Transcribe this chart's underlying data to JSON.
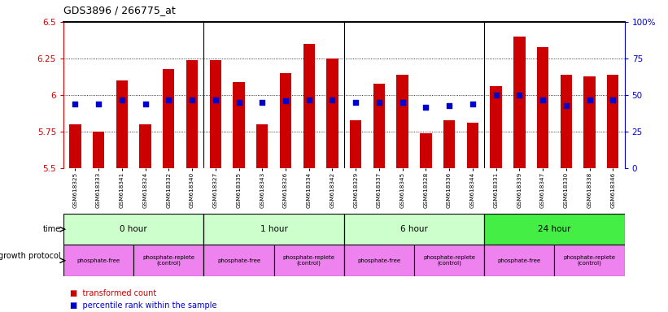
{
  "title": "GDS3896 / 266775_at",
  "samples": [
    "GSM618325",
    "GSM618333",
    "GSM618341",
    "GSM618324",
    "GSM618332",
    "GSM618340",
    "GSM618327",
    "GSM618335",
    "GSM618343",
    "GSM618326",
    "GSM618334",
    "GSM618342",
    "GSM618329",
    "GSM618337",
    "GSM618345",
    "GSM618328",
    "GSM618336",
    "GSM618344",
    "GSM618331",
    "GSM618339",
    "GSM618347",
    "GSM618330",
    "GSM618338",
    "GSM618346"
  ],
  "transformed_counts": [
    5.8,
    5.75,
    6.1,
    5.8,
    6.18,
    6.24,
    6.24,
    6.09,
    5.8,
    6.15,
    6.35,
    6.25,
    5.83,
    6.08,
    6.14,
    5.74,
    5.83,
    5.81,
    6.06,
    6.4,
    6.33,
    6.14,
    6.13,
    6.14
  ],
  "percentile_ranks": [
    44,
    44,
    47,
    44,
    47,
    47,
    47,
    45,
    45,
    46,
    47,
    47,
    45,
    45,
    45,
    42,
    43,
    44,
    50,
    50,
    47,
    43,
    47,
    47
  ],
  "bar_color": "#cc0000",
  "dot_color": "#0000cc",
  "ylim_left": [
    5.5,
    6.5
  ],
  "ylim_right": [
    0,
    100
  ],
  "yticks_left": [
    5.5,
    5.75,
    6.0,
    6.25,
    6.5
  ],
  "yticks_right": [
    0,
    25,
    50,
    75,
    100
  ],
  "ytick_labels_right": [
    "0",
    "25",
    "50",
    "75",
    "100%"
  ],
  "grid_values": [
    5.75,
    6.0,
    6.25
  ],
  "time_groups": [
    {
      "label": "0 hour",
      "start": 0,
      "end": 6,
      "color": "#ccffcc"
    },
    {
      "label": "1 hour",
      "start": 6,
      "end": 12,
      "color": "#ccffcc"
    },
    {
      "label": "6 hour",
      "start": 12,
      "end": 18,
      "color": "#ccffcc"
    },
    {
      "label": "24 hour",
      "start": 18,
      "end": 24,
      "color": "#44ee44"
    }
  ],
  "protocol_groups": [
    {
      "label": "phosphate-free",
      "start": 0,
      "end": 3
    },
    {
      "label": "phosphate-replete\n(control)",
      "start": 3,
      "end": 6
    },
    {
      "label": "phosphate-free",
      "start": 6,
      "end": 9
    },
    {
      "label": "phosphate-replete\n(control)",
      "start": 9,
      "end": 12
    },
    {
      "label": "phosphate-free",
      "start": 12,
      "end": 15
    },
    {
      "label": "phosphate-replete\n(control)",
      "start": 15,
      "end": 18
    },
    {
      "label": "phosphate-free",
      "start": 18,
      "end": 21
    },
    {
      "label": "phosphate-replete\n(control)",
      "start": 21,
      "end": 24
    }
  ],
  "bg_color": "#ffffff",
  "tick_label_color_left": "#cc0000",
  "tick_label_color_right": "#0000cc",
  "separators": [
    5.5,
    11.5,
    17.5
  ],
  "n_samples": 24,
  "bar_width": 0.5,
  "prot_color": "#ee82ee"
}
